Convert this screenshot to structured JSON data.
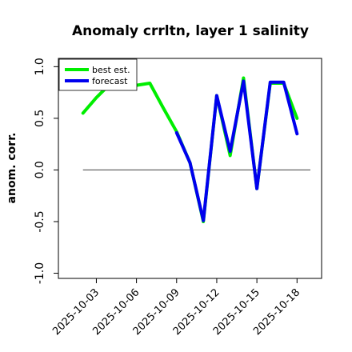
{
  "chart_data": {
    "type": "line",
    "title": "Anomaly crrltn, layer 1 salinity",
    "xlabel": "",
    "ylabel": "anom. corr.",
    "ylim": [
      -1.05,
      1.08
    ],
    "xlim": [
      "2025-10-01",
      "2025-10-19"
    ],
    "yticks": [
      -1.0,
      -0.5,
      0.0,
      0.5,
      1.0
    ],
    "ytick_labels": [
      "-1.0",
      "-0.5",
      "0.0",
      "0.5",
      "1.0"
    ],
    "xticks": [
      "2025-10-03",
      "2025-10-06",
      "2025-10-09",
      "2025-10-12",
      "2025-10-15",
      "2025-10-18"
    ],
    "xtick_labels": [
      "2025-10-03",
      "2025-10-06",
      "2025-10-09",
      "2025-10-12",
      "2025-10-15",
      "2025-10-18"
    ],
    "xtick_highlight": "2025-10-09",
    "xtick_highlight_color": "#228b22",
    "reference_line": 0.0,
    "grid": false,
    "legend_position": "top-left",
    "series": [
      {
        "name": "best est.",
        "color": "#00ee00",
        "points": [
          [
            "2025-10-02",
            0.55
          ],
          [
            "2025-10-03",
            0.7
          ],
          [
            "2025-10-04",
            0.83
          ],
          [
            "2025-10-05",
            0.84
          ],
          [
            "2025-10-06",
            0.82
          ],
          [
            "2025-10-07",
            0.84
          ],
          [
            "2025-10-08",
            0.6
          ],
          [
            "2025-10-09",
            0.37
          ],
          [
            "2025-10-10",
            0.07
          ],
          [
            "2025-10-11",
            -0.5
          ],
          [
            "2025-10-12",
            0.72
          ],
          [
            "2025-10-13",
            0.14
          ],
          [
            "2025-10-14",
            0.89
          ],
          [
            "2025-10-15",
            -0.18
          ],
          [
            "2025-10-16",
            0.84
          ],
          [
            "2025-10-17",
            0.84
          ],
          [
            "2025-10-18",
            0.5
          ]
        ]
      },
      {
        "name": "forecast",
        "color": "#0000ee",
        "points": [
          [
            "2025-10-09",
            0.36
          ],
          [
            "2025-10-10",
            0.07
          ],
          [
            "2025-10-11",
            -0.49
          ],
          [
            "2025-10-12",
            0.72
          ],
          [
            "2025-10-13",
            0.18
          ],
          [
            "2025-10-14",
            0.86
          ],
          [
            "2025-10-15",
            -0.18
          ],
          [
            "2025-10-16",
            0.85
          ],
          [
            "2025-10-17",
            0.85
          ],
          [
            "2025-10-18",
            0.35
          ]
        ]
      }
    ]
  }
}
